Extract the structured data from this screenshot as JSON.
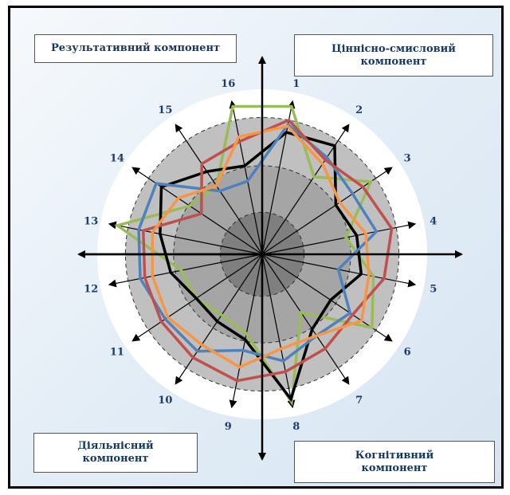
{
  "components": {
    "top_left": "Результативний компонент",
    "top_right": "Ціннісно-смисловий\nкомпонент",
    "bottom_left": "Діяльнісний\nкомпонент",
    "bottom_right": "Когнітивний\nкомпонент"
  },
  "colors": {
    "background_circle": "#ffffff",
    "zone_outer": "#c0c0c0",
    "zone_middle": "#a5a5a5",
    "zone_inner": "#7f7f7f",
    "axis": "#000000"
  },
  "chart_data": {
    "type": "radar",
    "axes": [
      "1",
      "2",
      "3",
      "4",
      "5",
      "6",
      "7",
      "8",
      "9",
      "10",
      "11",
      "12",
      "13",
      "14",
      "15",
      "16"
    ],
    "rmax": 10,
    "series": [
      {
        "color": "#9bbb59",
        "values": [
          9.7,
          6.0,
          8.4,
          5.5,
          7.3,
          8.5,
          4.5,
          9.7,
          5.2,
          4.7,
          5.1,
          5.3,
          9.5,
          5.6,
          5.3,
          9.7
        ]
      },
      {
        "color": "#000000",
        "values": [
          8.0,
          8.4,
          5.7,
          6.2,
          6.5,
          5.3,
          5.8,
          9.5,
          5.6,
          5.2,
          5.1,
          6.0,
          6.7,
          7.8,
          6.4,
          5.8
        ]
      },
      {
        "color": "#4f81bd",
        "values": [
          8.5,
          7.5,
          7.0,
          7.5,
          5.0,
          6.8,
          6.3,
          7.0,
          6.3,
          7.5,
          7.5,
          8.0,
          8.1,
          8.2,
          4.9,
          4.8
        ]
      },
      {
        "color": "#c0504d",
        "values": [
          8.8,
          7.3,
          7.8,
          8.5,
          8.0,
          7.0,
          7.3,
          7.7,
          8.3,
          8.0,
          7.8,
          7.7,
          7.8,
          4.7,
          7.0,
          7.4
        ]
      },
      {
        "color": "#f79646",
        "values": [
          8.4,
          7.0,
          6.0,
          6.8,
          7.0,
          7.7,
          6.3,
          6.2,
          7.4,
          7.0,
          7.3,
          7.2,
          7.2,
          6.5,
          5.3,
          7.7
        ]
      }
    ]
  }
}
